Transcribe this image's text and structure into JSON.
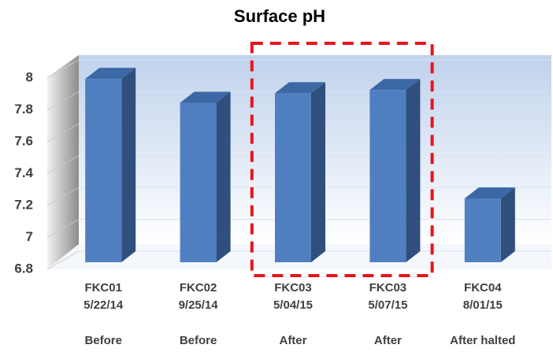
{
  "chart_data": {
    "type": "bar3d",
    "title": "Surface pH",
    "categories": [
      [
        "FKC01",
        "5/22/14"
      ],
      [
        "FKC02",
        "9/25/14"
      ],
      [
        "FKC03",
        "5/04/15"
      ],
      [
        "FKC03",
        "5/07/15"
      ],
      [
        "FKC04",
        "8/01/15"
      ]
    ],
    "groups": [
      "Before",
      "Before",
      "After",
      "After",
      "After halted"
    ],
    "values": [
      7.95,
      7.8,
      7.86,
      7.88,
      7.2
    ],
    "color": "#4f7fc0",
    "ylim": [
      6.8,
      8
    ],
    "yticks": [
      6.8,
      7,
      7.2,
      7.4,
      7.6,
      7.8,
      8
    ],
    "grid": true,
    "highlight": {
      "categories": [
        2,
        3
      ],
      "color": "#e8141c"
    }
  }
}
